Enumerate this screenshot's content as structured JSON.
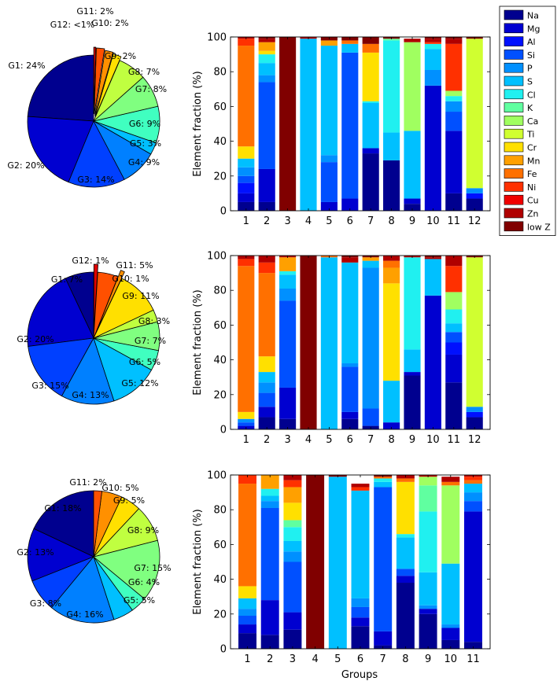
{
  "colors": {
    "Na": "#00008f",
    "Mg": "#0000d0",
    "Al": "#0010ff",
    "Si": "#0050ff",
    "P": "#0090ff",
    "S": "#00c0ff",
    "Cl": "#20f0f0",
    "K": "#60ffa0",
    "Ca": "#a0ff60",
    "Ti": "#d0ff30",
    "Cr": "#ffe000",
    "Mn": "#ffa000",
    "Fe": "#ff7000",
    "Ni": "#ff3000",
    "Cu": "#f00000",
    "Zn": "#b00000",
    "low Z": "#800000"
  },
  "pie_colors": [
    "#00008f",
    "#0000d0",
    "#0040ff",
    "#0080ff",
    "#00c0ff",
    "#40ffc0",
    "#80ff80",
    "#c0ff40",
    "#ffe000",
    "#ff9000",
    "#ff5000",
    "#e00000",
    "#800000"
  ],
  "legend": {
    "entries": [
      "Na",
      "Mg",
      "Al",
      "Si",
      "P",
      "S",
      "Cl",
      "K",
      "Ca",
      "Ti",
      "Cr",
      "Mn",
      "Fe",
      "Ni",
      "Cu",
      "Zn",
      "low Z"
    ]
  },
  "chart_data": [
    {
      "type": "pie",
      "labels": [
        "G1: 24%",
        "G2: 20%",
        "G3: 14%",
        "G4: 9%",
        "G5: 3%",
        "G6: 9%",
        "G7: 8%",
        "G8: 7%",
        "G9: 2%",
        "G10: 2%",
        "G11: 2%",
        "G12: <1%"
      ],
      "values": [
        24,
        20,
        14,
        9,
        3,
        9,
        8,
        7,
        2,
        2,
        2,
        0.5
      ],
      "exploded": [
        false,
        false,
        false,
        false,
        false,
        false,
        false,
        false,
        true,
        true,
        true,
        true
      ]
    },
    {
      "type": "bar",
      "stacked": true,
      "categories": [
        "1",
        "2",
        "3",
        "4",
        "5",
        "6",
        "7",
        "8",
        "9",
        "10",
        "11",
        "12"
      ],
      "ylabel": "Element fraction (%)",
      "xlabel": "",
      "ylim": [
        0,
        100
      ],
      "yticks": [
        "0",
        "20",
        "40",
        "60",
        "80",
        "100"
      ],
      "stacks": [
        [
          [
            "Na",
            5
          ],
          [
            "Mg",
            5
          ],
          [
            "Al",
            6
          ],
          [
            "Si",
            4
          ],
          [
            "P",
            5
          ],
          [
            "S",
            5
          ],
          [
            "Cr",
            7
          ],
          [
            "Fe",
            58
          ],
          [
            "Ni",
            4
          ],
          [
            "Zn",
            1
          ]
        ],
        [
          [
            "Na",
            5
          ],
          [
            "Mg",
            19
          ],
          [
            "Si",
            50
          ],
          [
            "P",
            4
          ],
          [
            "S",
            7
          ],
          [
            "Cl",
            5
          ],
          [
            "Cr",
            2
          ],
          [
            "Mn",
            5
          ],
          [
            "Zn",
            2
          ],
          [
            "low Z",
            1
          ]
        ],
        [
          [
            "low Z",
            100
          ]
        ],
        [
          [
            "S",
            99
          ],
          [
            "Zn",
            1
          ],
          [
            "low Z",
            1
          ]
        ],
        [
          [
            "Mg",
            5
          ],
          [
            "Si",
            23
          ],
          [
            "P",
            4
          ],
          [
            "S",
            63
          ],
          [
            "Mn",
            3
          ],
          [
            "low Z",
            3
          ]
        ],
        [
          [
            "Mg",
            7
          ],
          [
            "Si",
            84
          ],
          [
            "S",
            5
          ],
          [
            "Fe",
            2
          ],
          [
            "low Z",
            2
          ]
        ],
        [
          [
            "Na",
            33
          ],
          [
            "Mg",
            3
          ],
          [
            "S",
            26
          ],
          [
            "Cl",
            1
          ],
          [
            "Cr",
            28
          ],
          [
            "Fe",
            5
          ],
          [
            "low Z",
            4
          ]
        ],
        [
          [
            "Na",
            29
          ],
          [
            "S",
            16
          ],
          [
            "Cl",
            53
          ],
          [
            "K",
            1
          ],
          [
            "low Z",
            1
          ]
        ],
        [
          [
            "Na",
            4
          ],
          [
            "Mg",
            3
          ],
          [
            "S",
            39
          ],
          [
            "Ca",
            51
          ],
          [
            "Zn",
            2
          ]
        ],
        [
          [
            "Mg",
            72
          ],
          [
            "P",
            9
          ],
          [
            "S",
            12
          ],
          [
            "Cl",
            3
          ],
          [
            "Ni",
            1
          ],
          [
            "Zn",
            2
          ],
          [
            "low Z",
            1
          ]
        ],
        [
          [
            "Na",
            10
          ],
          [
            "Mg",
            36
          ],
          [
            "Si",
            11
          ],
          [
            "P",
            6
          ],
          [
            "Cl",
            3
          ],
          [
            "Ca",
            3
          ],
          [
            "Ni",
            27
          ],
          [
            "Zn",
            3
          ],
          [
            "low Z",
            1
          ]
        ],
        [
          [
            "Na",
            7
          ],
          [
            "Al",
            3
          ],
          [
            "P",
            3
          ],
          [
            "Ti",
            86
          ],
          [
            "low Z",
            1
          ]
        ]
      ]
    },
    {
      "type": "pie",
      "labels": [
        "G1: 7%",
        "G2: 20%",
        "G3: 15%",
        "G4: 13%",
        "G5: 12%",
        "G6: 5%",
        "G7: 7%",
        "G8: 3%",
        "G9: 11%",
        "G10: 1%",
        "G11: 5%",
        "G12: 1%"
      ],
      "values": [
        7,
        20,
        15,
        13,
        12,
        5,
        7,
        3,
        11,
        1,
        5,
        1
      ],
      "exploded": [
        false,
        false,
        false,
        false,
        false,
        false,
        false,
        false,
        false,
        true,
        false,
        true
      ]
    },
    {
      "type": "bar",
      "stacked": true,
      "categories": [
        "1",
        "2",
        "3",
        "4",
        "5",
        "6",
        "7",
        "8",
        "9",
        "10",
        "11",
        "12"
      ],
      "ylabel": "Element fraction (%)",
      "xlabel": "",
      "ylim": [
        0,
        100
      ],
      "yticks": [
        "0",
        "20",
        "40",
        "60",
        "80",
        "100"
      ],
      "stacks": [
        [
          [
            "Mg",
            2
          ],
          [
            "Si",
            2
          ],
          [
            "P",
            2
          ],
          [
            "Cr",
            4
          ],
          [
            "Fe",
            84
          ],
          [
            "Ni",
            4
          ],
          [
            "Zn",
            2
          ]
        ],
        [
          [
            "Na",
            7
          ],
          [
            "Mg",
            6
          ],
          [
            "Si",
            8
          ],
          [
            "P",
            6
          ],
          [
            "S",
            6
          ],
          [
            "Cr",
            9
          ],
          [
            "Fe",
            48
          ],
          [
            "Ni",
            6
          ],
          [
            "Zn",
            4
          ]
        ],
        [
          [
            "Na",
            6
          ],
          [
            "Mg",
            18
          ],
          [
            "Si",
            50
          ],
          [
            "P",
            7
          ],
          [
            "S",
            8
          ],
          [
            "Cl",
            2
          ],
          [
            "Mn",
            8
          ],
          [
            "Zn",
            1
          ]
        ],
        [
          [
            "low Z",
            100
          ]
        ],
        [
          [
            "S",
            99
          ],
          [
            "Fe",
            1
          ],
          [
            "low Z",
            1
          ]
        ],
        [
          [
            "Na",
            6
          ],
          [
            "Mg",
            4
          ],
          [
            "Si",
            26
          ],
          [
            "P",
            2
          ],
          [
            "S",
            58
          ],
          [
            "Zn",
            3
          ],
          [
            "low Z",
            2
          ]
        ],
        [
          [
            "Na",
            2
          ],
          [
            "Si",
            10
          ],
          [
            "P",
            81
          ],
          [
            "S",
            4
          ],
          [
            "Mn",
            2
          ],
          [
            "low Z",
            1
          ]
        ],
        [
          [
            "Mg",
            4
          ],
          [
            "S",
            24
          ],
          [
            "Cr",
            56
          ],
          [
            "Mn",
            9
          ],
          [
            "Fe",
            4
          ],
          [
            "Zn",
            3
          ]
        ],
        [
          [
            "Na",
            31
          ],
          [
            "Mg",
            2
          ],
          [
            "S",
            13
          ],
          [
            "Cl",
            53
          ],
          [
            "Zn",
            1
          ]
        ],
        [
          [
            "Mg",
            77
          ],
          [
            "S",
            21
          ],
          [
            "Zn",
            1
          ],
          [
            "low Z",
            1
          ]
        ],
        [
          [
            "Na",
            27
          ],
          [
            "Mg",
            16
          ],
          [
            "Al",
            7
          ],
          [
            "Si",
            6
          ],
          [
            "S",
            5
          ],
          [
            "Cl",
            8
          ],
          [
            "Ca",
            10
          ],
          [
            "Ni",
            15
          ],
          [
            "Zn",
            6
          ]
        ],
        [
          [
            "Na",
            7
          ],
          [
            "Al",
            3
          ],
          [
            "P",
            3
          ],
          [
            "Ti",
            86
          ],
          [
            "low Z",
            1
          ]
        ]
      ]
    },
    {
      "type": "pie",
      "labels": [
        "G1: 18%",
        "G2: 13%",
        "G3: 8%",
        "G4: 16%",
        "G5: 5%",
        "G6: 4%",
        "G7: 15%",
        "G8: 9%",
        "G9: 5%",
        "G10: 5%",
        "G11: 2%"
      ],
      "values": [
        18,
        13,
        8,
        16,
        5,
        4,
        15,
        9,
        5,
        5,
        2
      ],
      "exploded": [
        false,
        false,
        false,
        false,
        false,
        false,
        false,
        false,
        false,
        false,
        false
      ]
    },
    {
      "type": "bar",
      "stacked": true,
      "categories": [
        "1",
        "2",
        "3",
        "4",
        "5",
        "6",
        "7",
        "8",
        "9",
        "10",
        "11"
      ],
      "ylabel": "Element fraction (%)",
      "xlabel": "Groups",
      "ylim": [
        0,
        100
      ],
      "yticks": [
        "0",
        "20",
        "40",
        "60",
        "80",
        "100"
      ],
      "stacks": [
        [
          [
            "Na",
            9
          ],
          [
            "Mg",
            5
          ],
          [
            "Si",
            5
          ],
          [
            "P",
            4
          ],
          [
            "S",
            6
          ],
          [
            "Cr",
            7
          ],
          [
            "Fe",
            59
          ],
          [
            "Ni",
            5
          ]
        ],
        [
          [
            "Na",
            8
          ],
          [
            "Mg",
            20
          ],
          [
            "Si",
            53
          ],
          [
            "P",
            4
          ],
          [
            "S",
            3
          ],
          [
            "Cl",
            4
          ],
          [
            "Mn",
            8
          ]
        ],
        [
          [
            "Na",
            11
          ],
          [
            "Mg",
            10
          ],
          [
            "Si",
            29
          ],
          [
            "P",
            6
          ],
          [
            "S",
            6
          ],
          [
            "Cl",
            8
          ],
          [
            "K",
            4
          ],
          [
            "Cr",
            10
          ],
          [
            "Mn",
            9
          ],
          [
            "Ni",
            4
          ],
          [
            "Zn",
            3
          ]
        ],
        [
          [
            "low Z",
            100
          ]
        ],
        [
          [
            "S",
            99
          ],
          [
            "low Z",
            1
          ]
        ],
        [
          [
            "Na",
            13
          ],
          [
            "Mg",
            5
          ],
          [
            "Si",
            6
          ],
          [
            "P",
            5
          ],
          [
            "S",
            62
          ],
          [
            "Ni",
            2
          ],
          [
            "Zn",
            2
          ]
        ],
        [
          [
            "Na",
            2
          ],
          [
            "Mg",
            8
          ],
          [
            "Si",
            83
          ],
          [
            "S",
            3
          ],
          [
            "Cl",
            2
          ],
          [
            "Fe",
            1
          ],
          [
            "low Z",
            1
          ]
        ],
        [
          [
            "Na",
            38
          ],
          [
            "Mg",
            4
          ],
          [
            "Si",
            4
          ],
          [
            "S",
            18
          ],
          [
            "Cl",
            2
          ],
          [
            "Cr",
            30
          ],
          [
            "Fe",
            2
          ],
          [
            "Zn",
            2
          ]
        ],
        [
          [
            "Na",
            20
          ],
          [
            "Mg",
            3
          ],
          [
            "P",
            2
          ],
          [
            "S",
            19
          ],
          [
            "Cl",
            35
          ],
          [
            "K",
            15
          ],
          [
            "Ca",
            5
          ],
          [
            "Zn",
            1
          ]
        ],
        [
          [
            "Na",
            5
          ],
          [
            "Mg",
            7
          ],
          [
            "P",
            2
          ],
          [
            "S",
            35
          ],
          [
            "Ca",
            45
          ],
          [
            "Fe",
            2
          ],
          [
            "Zn",
            3
          ]
        ],
        [
          [
            "Na",
            4
          ],
          [
            "Mg",
            75
          ],
          [
            "Si",
            6
          ],
          [
            "P",
            5
          ],
          [
            "S",
            5
          ],
          [
            "Fe",
            2
          ],
          [
            "Ni",
            2
          ],
          [
            "Zn",
            1
          ]
        ]
      ]
    }
  ]
}
